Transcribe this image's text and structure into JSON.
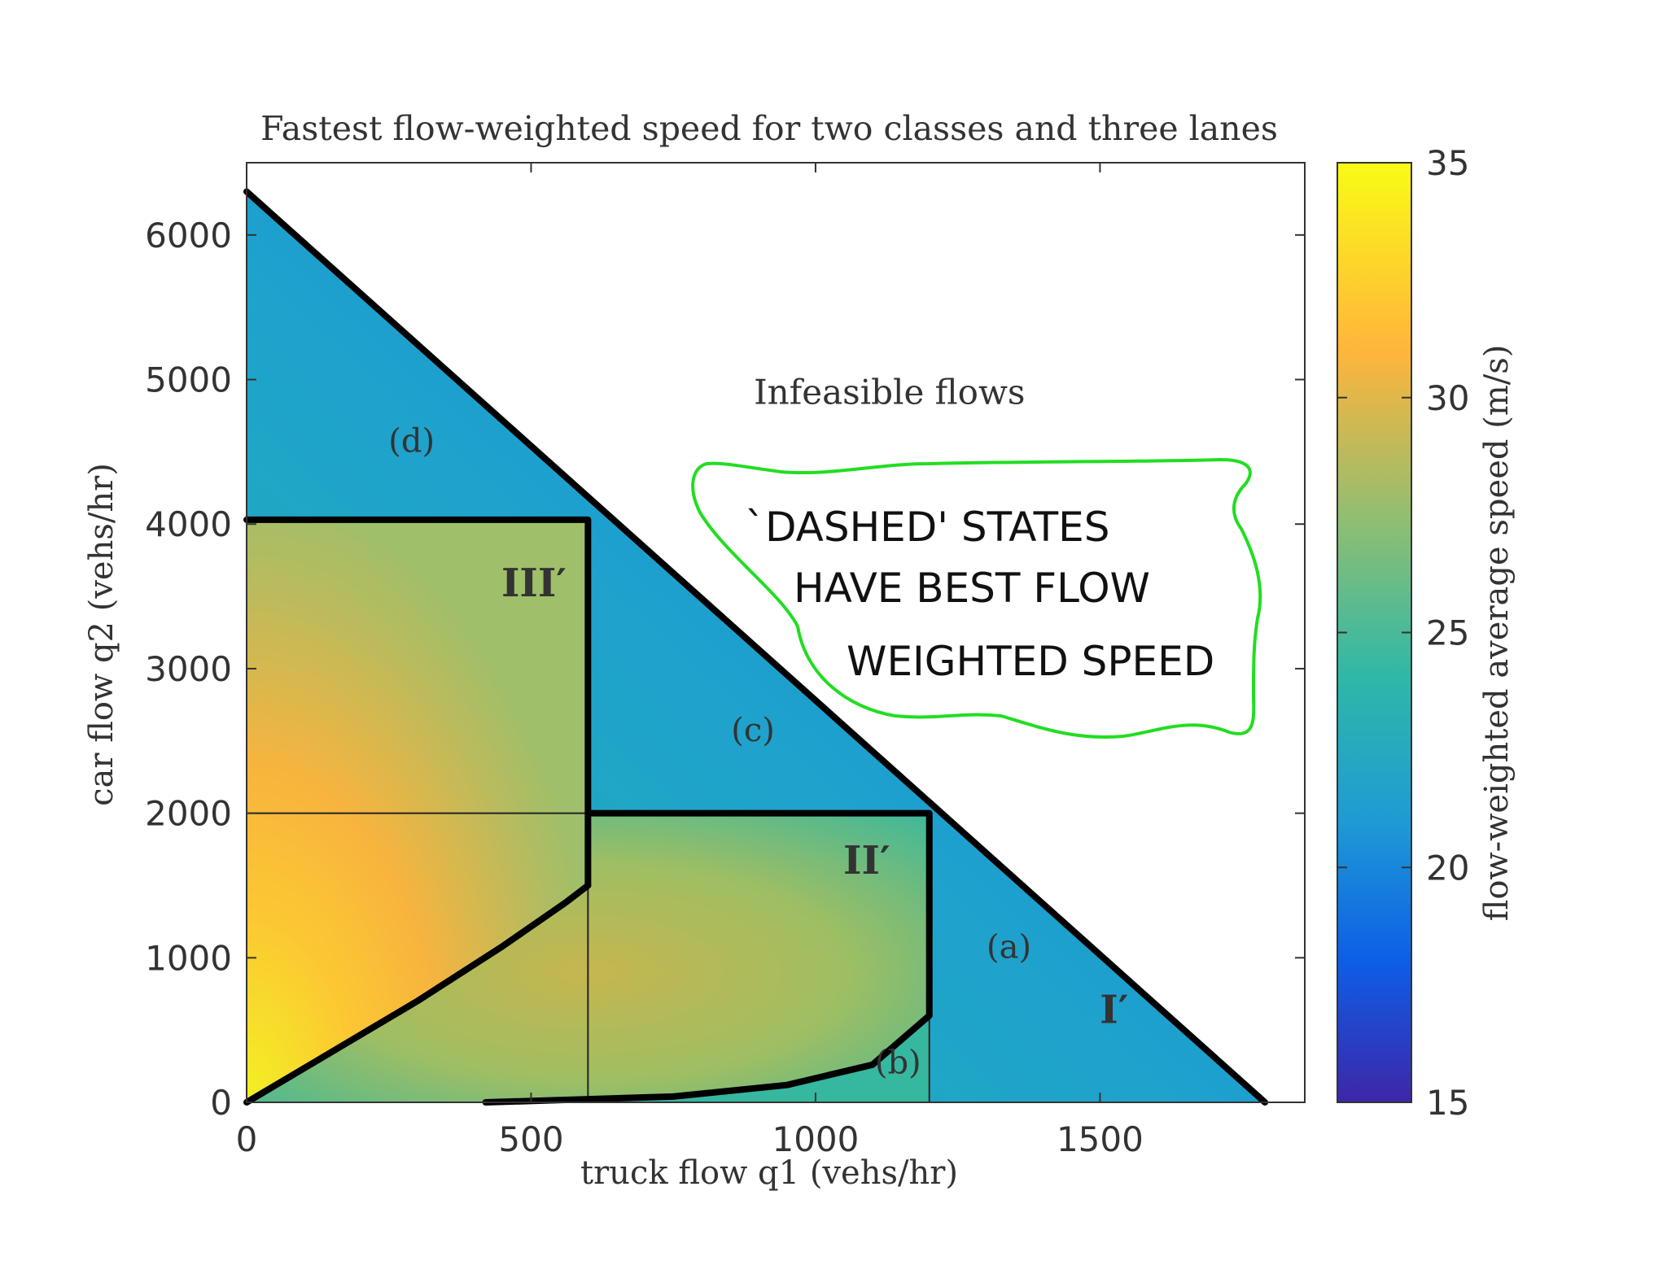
{
  "chart_data": {
    "type": "heatmap",
    "title": "Fastest flow-weighted speed for two classes and three lanes",
    "xlabel": "truck flow q1 (vehs/hr)",
    "ylabel": "car flow q2 (vehs/hr)",
    "xlim": [
      0,
      1860
    ],
    "ylim": [
      0,
      6500
    ],
    "xticks": [
      0,
      500,
      1000,
      1500
    ],
    "yticks": [
      0,
      1000,
      2000,
      3000,
      4000,
      5000,
      6000
    ],
    "colorbar": {
      "label": "flow-weighted average speed (m/s)",
      "range": [
        15,
        35
      ],
      "ticks": [
        15,
        20,
        25,
        30,
        35
      ],
      "colors": [
        "#3e26a8",
        "#0d5ee6",
        "#1e9bd4",
        "#2db8a8",
        "#90be72",
        "#ffb53b",
        "#f9fb15"
      ]
    },
    "feasibility_boundary": [
      [
        0,
        6300
      ],
      [
        1790,
        0
      ]
    ],
    "region_boundaries": [
      {
        "points": [
          [
            0,
            4030
          ],
          [
            600,
            4030
          ],
          [
            600,
            1500
          ]
        ]
      },
      {
        "points": [
          [
            600,
            2000
          ],
          [
            1200,
            2000
          ],
          [
            1200,
            600
          ]
        ]
      },
      {
        "points": [
          [
            0,
            0
          ],
          [
            150,
            350
          ],
          [
            300,
            700
          ],
          [
            450,
            1080
          ],
          [
            560,
            1380
          ],
          [
            600,
            1500
          ]
        ]
      },
      {
        "points": [
          [
            420,
            0
          ],
          [
            750,
            40
          ],
          [
            950,
            120
          ],
          [
            1100,
            260
          ],
          [
            1200,
            600
          ]
        ]
      }
    ],
    "thin_lines": [
      {
        "points": [
          [
            0,
            2000
          ],
          [
            600,
            2000
          ]
        ]
      },
      {
        "points": [
          [
            600,
            0
          ],
          [
            600,
            1500
          ]
        ]
      },
      {
        "points": [
          [
            1200,
            0
          ],
          [
            1200,
            600
          ]
        ]
      }
    ],
    "region_labels": [
      {
        "text": "(d)",
        "x": 290,
        "y": 4500
      },
      {
        "text": "III′",
        "x": 505,
        "y": 3500,
        "bold": true
      },
      {
        "text": "(c)",
        "x": 890,
        "y": 2500
      },
      {
        "text": "II′",
        "x": 1090,
        "y": 1580,
        "bold": true
      },
      {
        "text": "(a)",
        "x": 1340,
        "y": 1000
      },
      {
        "text": "I′",
        "x": 1525,
        "y": 550,
        "bold": true
      },
      {
        "text": "(b)",
        "x": 1145,
        "y": 200
      }
    ],
    "annotations": [
      {
        "text": "Infeasible flows",
        "x": 1130,
        "y": 4830
      }
    ],
    "handwritten_note": {
      "lines": [
        "`DASHED' STATES",
        "HAVE BEST FLOW",
        "WEIGHTED SPEED"
      ],
      "outline_color": "#22dd22"
    }
  }
}
